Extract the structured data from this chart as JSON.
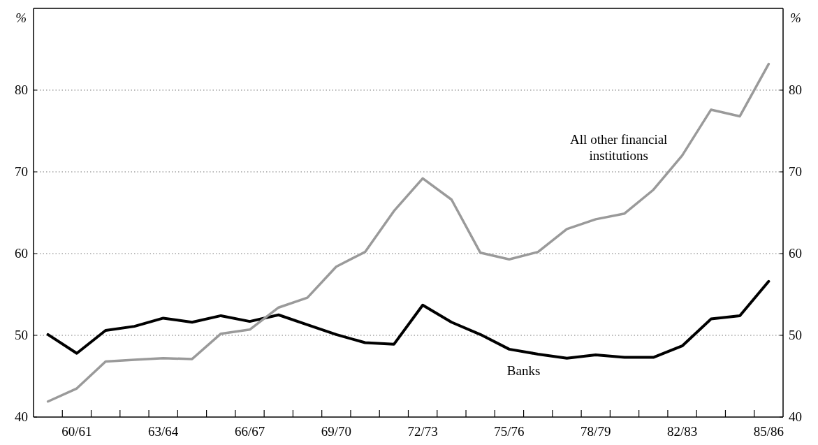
{
  "chart_data": {
    "type": "line",
    "ylabel": "%",
    "y2label": "%",
    "categories": [
      null,
      "60/61",
      null,
      null,
      "63/64",
      null,
      null,
      "66/67",
      null,
      null,
      "69/70",
      null,
      null,
      "72/73",
      null,
      null,
      "75/76",
      null,
      null,
      "78/79",
      null,
      null,
      "82/83",
      null,
      null,
      "85/86"
    ],
    "ylim": [
      40,
      90
    ],
    "yticks": [
      40,
      50,
      60,
      70,
      80
    ],
    "y2lim": [
      40,
      90
    ],
    "y2ticks": [
      40,
      50,
      60,
      70,
      80
    ],
    "grid": "y",
    "marker": "none",
    "line_style": "solid",
    "series": [
      {
        "name": "Banks",
        "color": "#000000",
        "values": [
          50.1,
          47.8,
          50.6,
          51.1,
          52.1,
          51.6,
          52.4,
          51.7,
          52.5,
          51.3,
          50.1,
          49.1,
          48.9,
          53.7,
          51.6,
          50.1,
          48.3,
          47.7,
          47.2,
          47.6,
          47.3,
          47.3,
          48.7,
          52.0,
          52.4,
          56.6
        ]
      },
      {
        "name": "All other financial institutions",
        "color": "#9a9a9a",
        "values": [
          41.9,
          43.5,
          46.8,
          47.0,
          47.2,
          47.1,
          50.2,
          50.7,
          53.4,
          54.6,
          58.4,
          60.2,
          65.2,
          69.2,
          66.6,
          60.1,
          59.3,
          60.2,
          63.0,
          64.2,
          64.9,
          67.8,
          72.0,
          77.6,
          76.8,
          83.2
        ]
      }
    ]
  }
}
